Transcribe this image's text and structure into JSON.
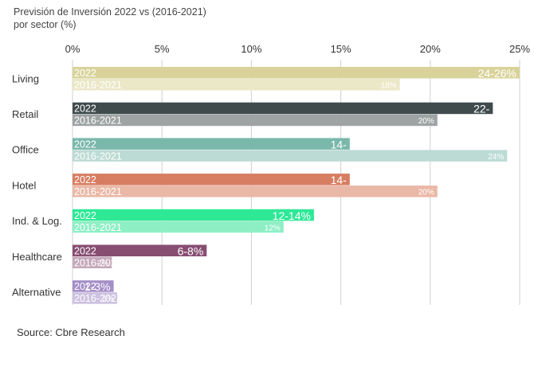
{
  "title_line1": "Previsión de Inversión 2022 vs (2016-2021)",
  "title_line2": "por sector (%)",
  "source": "Source: Cbre Research",
  "chart_data": {
    "type": "bar",
    "orientation": "horizontal",
    "title": "Previsión de Inversión 2022 vs (2016-2021) por sector (%)",
    "xlim": [
      0,
      25
    ],
    "x_ticks": [
      0,
      5,
      10,
      15,
      20,
      25
    ],
    "x_tick_labels": [
      "0%",
      "5%",
      "10%",
      "15%",
      "20%",
      "25%"
    ],
    "grid": true,
    "categories": [
      "Living",
      "Retail",
      "Office",
      "Hotel",
      "Ind. & Log.",
      "Healthcare",
      "Alternative"
    ],
    "series": [
      {
        "name": "2022",
        "values": [
          25,
          23.5,
          15.5,
          15.5,
          13.5,
          7.5,
          2.3
        ],
        "labels": [
          "24-26%",
          "22-",
          "14-",
          "14-",
          "12-14%",
          "6-8%",
          "1-3%"
        ],
        "colors": [
          "#d9d39b",
          "#3f4b4c",
          "#7ab8ab",
          "#d77d62",
          "#2ee896",
          "#874e72",
          "#a58ec7"
        ]
      },
      {
        "name": "2016-2021",
        "values": [
          18.3,
          20.4,
          24.3,
          20.4,
          11.8,
          2.2,
          2.5
        ],
        "labels": [
          "18%",
          "20%",
          "24%",
          "20%",
          "12%",
          "2%",
          "3%"
        ],
        "colors": [
          "#ebe8c8",
          "#9ea3a3",
          "#bcdbd4",
          "#eab8a6",
          "#8eefc4",
          "#c6a9bb",
          "#cdc2e0"
        ]
      }
    ]
  }
}
